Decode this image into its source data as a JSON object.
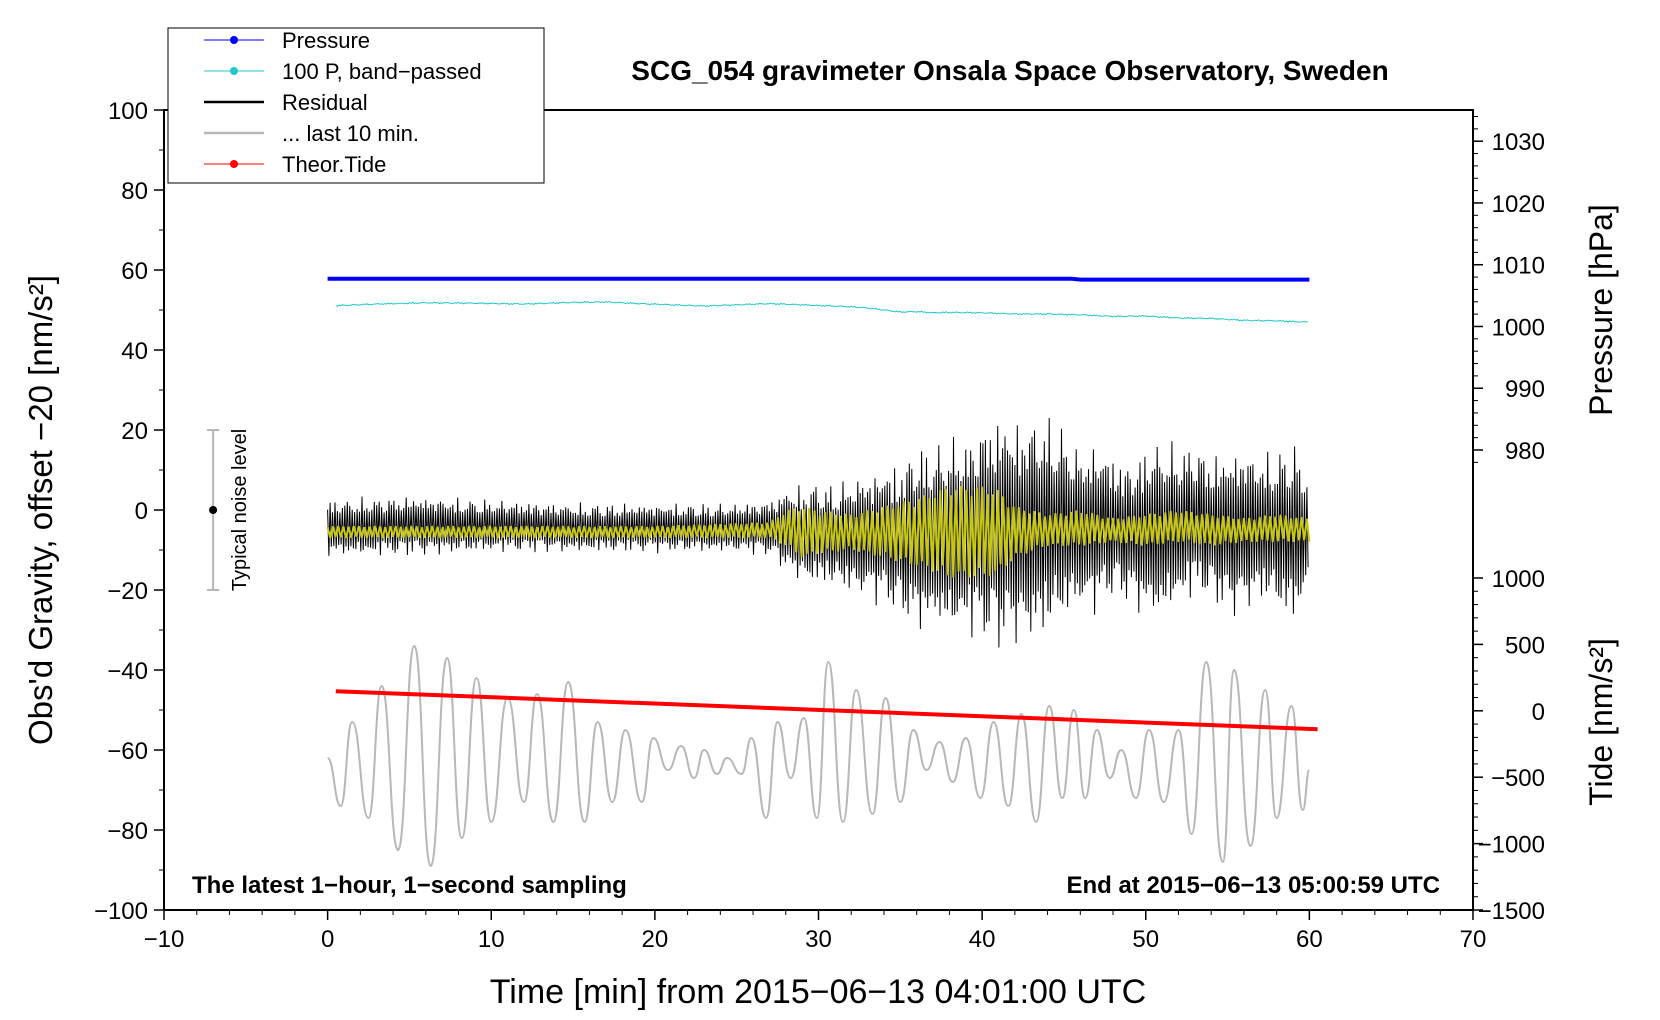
{
  "chart_data": {
    "type": "line",
    "title": "SCG_054 gravimeter Onsala Space Observatory, Sweden",
    "xlabel": "Time [min] from 2015−06−13 04:01:00 UTC",
    "ylabel_left": "Obs'd Gravity, offset −20 [nm/s²]",
    "ylabel_pressure": "Pressure [hPa]",
    "ylabel_tide": "Tide [nm/s²]",
    "xlim": [
      -10,
      70
    ],
    "ylim": [
      -100,
      100
    ],
    "x_ticks": [
      "−10",
      "0",
      "10",
      "20",
      "30",
      "40",
      "50",
      "60",
      "70"
    ],
    "x_tick_values": [
      -10,
      0,
      10,
      20,
      30,
      40,
      50,
      60,
      70
    ],
    "y_ticks": [
      "100",
      "80",
      "60",
      "40",
      "20",
      "0",
      "−20",
      "−40",
      "−60",
      "−80",
      "−100"
    ],
    "y_tick_values": [
      100,
      80,
      60,
      40,
      20,
      0,
      -20,
      -40,
      -60,
      -80,
      -100
    ],
    "pressure_ticks": [
      "1030",
      "1020",
      "1010",
      "1000",
      "990",
      "980"
    ],
    "pressure_tick_values": [
      1030,
      1020,
      1010,
      1000,
      990,
      980
    ],
    "pressure_axis_map": {
      "hpa_a": 1030,
      "grav_a": 92.2,
      "hpa_b": 980,
      "grav_b": 15.0
    },
    "tide_ticks": [
      "1000",
      "500",
      "0",
      "−500",
      "−1000",
      "−1500"
    ],
    "tide_tick_values": [
      1000,
      500,
      0,
      -500,
      -1000,
      -1500
    ],
    "tide_axis_map": {
      "tide_a": 1000,
      "grav_a": -17.0,
      "tide_b": -1500,
      "grav_b": -100.0
    },
    "legend": [
      {
        "label": "Pressure",
        "color": "#0000ff",
        "marker": true
      },
      {
        "label": "100 P, band−passed",
        "color": "#20c8c8",
        "marker": true
      },
      {
        "label": "Residual",
        "color": "#000000",
        "marker": false
      },
      {
        "label": "... last 10 min.",
        "color": "#b8b8b8",
        "marker": false
      },
      {
        "label": "Theor.Tide",
        "color": "#ff0000",
        "marker": true
      }
    ],
    "annotations": {
      "bottom_left": "The latest 1−hour, 1−second sampling",
      "bottom_right": "End at 2015−06−13 05:00:59 UTC",
      "noise_label": "Typical noise level"
    },
    "noise_bar": {
      "x": -7,
      "center": 0,
      "low": -20,
      "high": 20
    },
    "series": [
      {
        "name": "Pressure",
        "color": "#0000ff",
        "x": [
          0,
          10,
          20,
          30,
          40,
          45.5,
          46,
          50,
          60
        ],
        "y": [
          57.8,
          57.8,
          57.8,
          57.8,
          57.8,
          57.8,
          57.6,
          57.6,
          57.6
        ]
      },
      {
        "name": "100 P, band-passed",
        "color": "#20c8c8",
        "x": [
          0,
          3,
          6,
          9,
          12,
          15,
          17,
          19,
          21,
          23,
          25,
          27,
          29,
          30,
          31,
          32,
          33,
          34,
          35,
          36,
          37,
          38,
          40,
          42,
          44,
          46,
          48,
          50,
          52,
          54,
          56,
          58,
          59,
          60
        ],
        "y": [
          51.0,
          51.5,
          51.8,
          51.7,
          51.5,
          51.9,
          52.0,
          51.6,
          51.3,
          51.0,
          51.3,
          51.6,
          51.3,
          51.1,
          51.0,
          50.8,
          50.5,
          50.0,
          49.5,
          49.6,
          49.3,
          49.4,
          49.3,
          49.0,
          49.0,
          48.8,
          48.4,
          48.5,
          48.0,
          47.9,
          47.4,
          47.3,
          47.1,
          47.0
        ]
      },
      {
        "name": "Residual envelope (max)",
        "color": "#000000",
        "x": [
          0,
          5,
          10,
          15,
          20,
          25,
          27,
          28,
          29,
          30,
          31,
          32,
          33,
          34,
          35,
          36,
          37,
          38,
          39,
          40,
          41,
          42,
          43,
          44,
          45,
          46,
          47,
          48,
          49,
          50,
          51,
          52,
          53,
          54,
          55,
          56,
          57,
          58,
          59,
          60
        ],
        "y": [
          3,
          4,
          3,
          2,
          2,
          2,
          3,
          6,
          7,
          8,
          7,
          9,
          10,
          12,
          13,
          18,
          17,
          20,
          19,
          24,
          26,
          24,
          25,
          25,
          22,
          16,
          18,
          15,
          13,
          17,
          19,
          17,
          18,
          15,
          16,
          17,
          15,
          16,
          19,
          10
        ]
      },
      {
        "name": "Residual envelope (min)",
        "color": "#000000",
        "x": [
          0,
          5,
          10,
          15,
          20,
          25,
          27,
          28,
          29,
          30,
          31,
          32,
          33,
          34,
          35,
          36,
          37,
          38,
          39,
          40,
          41,
          42,
          43,
          44,
          45,
          46,
          47,
          48,
          49,
          50,
          51,
          52,
          53,
          54,
          55,
          56,
          57,
          58,
          59,
          60
        ],
        "y": [
          -12,
          -12,
          -11,
          -11,
          -11,
          -11,
          -12,
          -16,
          -19,
          -20,
          -20,
          -22,
          -23,
          -25,
          -28,
          -32,
          -30,
          -33,
          -32,
          -35,
          -37,
          -35,
          -35,
          -33,
          -29,
          -26,
          -27,
          -23,
          -25,
          -28,
          -29,
          -25,
          -23,
          -24,
          -28,
          -27,
          -24,
          -26,
          -31,
          -20
        ]
      },
      {
        "name": "Residual filtered envelope (max)",
        "color": "#c8c814",
        "x": [
          0,
          10,
          20,
          27,
          28,
          29,
          30,
          32,
          34,
          36,
          38,
          40,
          41,
          42,
          44,
          46,
          48,
          50,
          52,
          54,
          56,
          58,
          60
        ],
        "y": [
          -4,
          -4,
          -4,
          -3,
          0,
          1,
          0,
          -1,
          1,
          3,
          6,
          6,
          5,
          1,
          -1,
          0,
          -2,
          -1,
          0,
          -1,
          -2,
          -1,
          -2
        ]
      },
      {
        "name": "Residual filtered envelope (min)",
        "color": "#c8c814",
        "x": [
          0,
          10,
          20,
          27,
          28,
          29,
          30,
          32,
          34,
          36,
          38,
          40,
          41,
          42,
          44,
          46,
          48,
          50,
          52,
          54,
          56,
          58,
          60
        ],
        "y": [
          -7,
          -7,
          -7,
          -7,
          -9,
          -12,
          -11,
          -10,
          -12,
          -14,
          -17,
          -17,
          -16,
          -12,
          -9,
          -9,
          -8,
          -9,
          -8,
          -9,
          -8,
          -8,
          -8
        ]
      },
      {
        "name": "... last 10 min.",
        "color": "#b8b8b8",
        "peaks": [
          [
            0,
            -62
          ],
          [
            0.8,
            -74
          ],
          [
            1.5,
            -53
          ],
          [
            2.5,
            -77
          ],
          [
            3.3,
            -44
          ],
          [
            4.3,
            -85
          ],
          [
            5.3,
            -34
          ],
          [
            6.3,
            -89
          ],
          [
            7.3,
            -37
          ],
          [
            8.2,
            -82
          ],
          [
            9.1,
            -42
          ],
          [
            10,
            -78
          ],
          [
            11,
            -47
          ],
          [
            12,
            -73
          ],
          [
            12.8,
            -46
          ],
          [
            13.8,
            -78
          ],
          [
            14.7,
            -43
          ],
          [
            15.7,
            -78
          ],
          [
            16.5,
            -53
          ],
          [
            17.4,
            -73
          ],
          [
            18.2,
            -55
          ],
          [
            19.2,
            -73
          ],
          [
            19.9,
            -57
          ],
          [
            20.8,
            -65
          ],
          [
            21.6,
            -59
          ],
          [
            22.4,
            -67
          ],
          [
            23,
            -60
          ],
          [
            23.8,
            -66
          ],
          [
            24.4,
            -62
          ],
          [
            25.3,
            -66
          ],
          [
            25.9,
            -57
          ],
          [
            26.8,
            -77
          ],
          [
            27.5,
            -53
          ],
          [
            28.3,
            -67
          ],
          [
            29.1,
            -52
          ],
          [
            29.9,
            -77
          ],
          [
            30.6,
            -38
          ],
          [
            31.5,
            -78
          ],
          [
            32.3,
            -45
          ],
          [
            33.3,
            -76
          ],
          [
            34.1,
            -47
          ],
          [
            35,
            -73
          ],
          [
            35.8,
            -55
          ],
          [
            36.6,
            -65
          ],
          [
            37.4,
            -58
          ],
          [
            38.2,
            -68
          ],
          [
            39,
            -57
          ],
          [
            39.9,
            -72
          ],
          [
            40.7,
            -53
          ],
          [
            41.6,
            -74
          ],
          [
            42.4,
            -51
          ],
          [
            43.3,
            -78
          ],
          [
            44.1,
            -49
          ],
          [
            44.9,
            -72
          ],
          [
            45.6,
            -50
          ],
          [
            46.3,
            -72
          ],
          [
            47,
            -55
          ],
          [
            47.8,
            -67
          ],
          [
            48.5,
            -60
          ],
          [
            49.4,
            -72
          ],
          [
            50.2,
            -55
          ],
          [
            51.1,
            -73
          ],
          [
            52,
            -55
          ],
          [
            52.8,
            -81
          ],
          [
            53.7,
            -38
          ],
          [
            54.7,
            -88
          ],
          [
            55.4,
            -40
          ],
          [
            56.4,
            -84
          ],
          [
            57.3,
            -45
          ],
          [
            58,
            -77
          ],
          [
            58.9,
            -49
          ],
          [
            59.6,
            -75
          ],
          [
            60,
            -65
          ]
        ]
      },
      {
        "name": "Theor.Tide",
        "color": "#ff0000",
        "x": [
          0.5,
          60.5
        ],
        "y": [
          -45.3,
          -54.8
        ]
      }
    ]
  }
}
